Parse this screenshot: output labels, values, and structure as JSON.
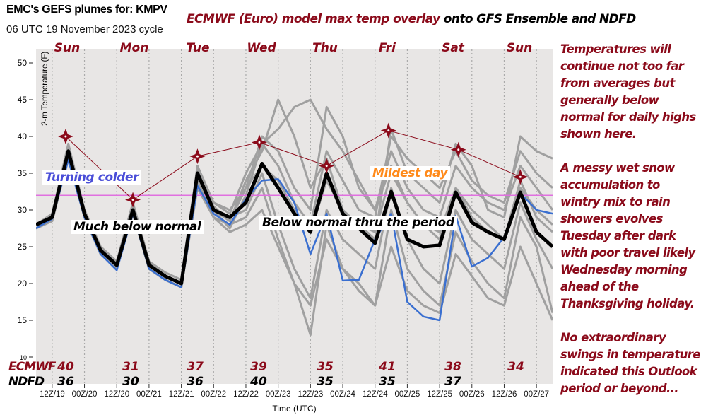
{
  "header": {
    "title": "EMC's GEFS plumes for: KMPV",
    "subtitle": "06 UTC 19 November 2023 cycle",
    "overlay_title_part1": "ECMWF (Euro) model max temp overlay",
    "overlay_title_part2": "onto GFS Ensemble and NDFD"
  },
  "side_notes": [
    "Temperatures will continue not too far from averages but generally below normal for daily  highs shown here.",
    "A messy wet snow accumulation to wintry mix to rain showers evolves Tuesday after dark with poor travel likely Wednesday morning ahead of the Thanksgiving holiday.",
    "No extraordinary swings in temperature indicated this Outlook period or beyond..."
  ],
  "annotations": {
    "turning_colder": "Turning colder",
    "much_below": "Much below normal",
    "below_period": "Below normal thru the period",
    "mildest": "Mildest day"
  },
  "colors": {
    "ecmwf": "#8b0a1a",
    "mean": "#000000",
    "control": "#3a6fd0",
    "members": "#a0a0a0",
    "freezing_line": "#e070e0",
    "plot_bg": "#e8e6e5",
    "turning_colder": "#4a4ed8",
    "mildest": "#ff8a1a"
  },
  "chart_data": {
    "type": "line",
    "xlabel": "Time (UTC)",
    "ylabel": "2-m Temperature (F)",
    "ylim": [
      10,
      52
    ],
    "xlim": [
      "11/19 06Z",
      "11/27 06Z"
    ],
    "yticks": [
      10,
      15,
      20,
      25,
      30,
      35,
      40,
      45,
      50
    ],
    "xticks": [
      "12Z/19",
      "00Z/20",
      "12Z/20",
      "00Z/21",
      "12Z/21",
      "00Z/22",
      "12Z/22",
      "00Z/23",
      "12Z/23",
      "00Z/24",
      "12Z/24",
      "00Z/25",
      "12Z/25",
      "00Z/26",
      "12Z/26",
      "00Z/27"
    ],
    "day_labels": [
      "Sun",
      "Mon",
      "Tue",
      "Wed",
      "Thu",
      "Fri",
      "Sat",
      "Sun"
    ],
    "grid": "vertical dotted",
    "reference_line": 32,
    "times": [
      "11/19 06Z",
      "11/19 12Z",
      "11/19 18Z",
      "11/20 00Z",
      "11/20 06Z",
      "11/20 12Z",
      "11/20 18Z",
      "11/21 00Z",
      "11/21 06Z",
      "11/21 12Z",
      "11/21 18Z",
      "11/22 00Z",
      "11/22 06Z",
      "11/22 12Z",
      "11/22 18Z",
      "11/23 00Z",
      "11/23 06Z",
      "11/23 12Z",
      "11/23 18Z",
      "11/24 00Z",
      "11/24 06Z",
      "11/24 12Z",
      "11/24 18Z",
      "11/25 00Z",
      "11/25 06Z",
      "11/25 12Z",
      "11/25 18Z",
      "11/26 00Z",
      "11/26 06Z",
      "11/26 12Z",
      "11/26 18Z",
      "11/27 00Z",
      "11/27 06Z"
    ],
    "members": [
      [
        28,
        29.5,
        39,
        30,
        25,
        23,
        31,
        23,
        21.5,
        20.5,
        36,
        31,
        30,
        33,
        40,
        38,
        33,
        30,
        44,
        40,
        33,
        30,
        38,
        33,
        30,
        29,
        36,
        33,
        31,
        30,
        36,
        33,
        30
      ],
      [
        27.5,
        29,
        37,
        29,
        24,
        22,
        30,
        22.5,
        21,
        20,
        34.5,
        30.5,
        28.5,
        34,
        38,
        45,
        40,
        33,
        37,
        30,
        28,
        26,
        41,
        35,
        33,
        31,
        39,
        36,
        30,
        29,
        40,
        38,
        37
      ],
      [
        28,
        29,
        38,
        29.5,
        24.5,
        22.5,
        30,
        22,
        20.5,
        19.5,
        35,
        30,
        29,
        30,
        35,
        28,
        22,
        18,
        30,
        26,
        24,
        22,
        33,
        26,
        22,
        20,
        30,
        26,
        24,
        22,
        31,
        26,
        22
      ],
      [
        27.5,
        28.5,
        37.5,
        29,
        24,
        22,
        29.5,
        22,
        20.5,
        19.5,
        35.5,
        30,
        27.5,
        32,
        39,
        41,
        44,
        45,
        41,
        38,
        34,
        30,
        36,
        31,
        28,
        26,
        33,
        29,
        27,
        26,
        34,
        29,
        27
      ],
      [
        28,
        29,
        38,
        30,
        25,
        23,
        30.5,
        23,
        21,
        20,
        34,
        29,
        28,
        29,
        33,
        26,
        20,
        13,
        28,
        22,
        20,
        17,
        30,
        22,
        19,
        17,
        27,
        23,
        20,
        18,
        29,
        25,
        16
      ],
      [
        28,
        29,
        38.5,
        30,
        24.5,
        22.5,
        30,
        22.5,
        21,
        20,
        35,
        31,
        29.5,
        35,
        39,
        36,
        31,
        28,
        38,
        34,
        30,
        29,
        40,
        37,
        35,
        33,
        38,
        34,
        32,
        31,
        38,
        35,
        33
      ],
      [
        27.5,
        28.5,
        37,
        29,
        24,
        22,
        29.5,
        22,
        20.5,
        19.5,
        33,
        29,
        27,
        28,
        30,
        25,
        20,
        17,
        26,
        22,
        19,
        17,
        25,
        19,
        17,
        16,
        24,
        21,
        18,
        17,
        25,
        20,
        15
      ],
      [
        28,
        29,
        38,
        29.5,
        24.5,
        22.5,
        30,
        22.5,
        21,
        20,
        35,
        30,
        28.5,
        33,
        36,
        34,
        30,
        27,
        34,
        30,
        28,
        27,
        35,
        31,
        28,
        27,
        33,
        30,
        28,
        26,
        33,
        30,
        28
      ]
    ],
    "series": [
      {
        "name": "GEFS mean",
        "values": [
          28,
          29,
          38,
          29.5,
          24.5,
          22.5,
          30,
          22.5,
          21,
          20,
          35,
          30,
          29,
          31,
          36.3,
          33,
          29.5,
          27,
          35,
          29.5,
          27.5,
          25.5,
          32.5,
          26,
          25,
          25.2,
          32.4,
          28.3,
          27,
          26,
          32.4,
          27,
          25
        ]
      },
      {
        "name": "control",
        "values": [
          27.5,
          28.8,
          36.8,
          29,
          24,
          21.8,
          29.5,
          22,
          20.5,
          19.5,
          33.3,
          29.5,
          28,
          31.5,
          34,
          34.2,
          31,
          24,
          29.5,
          20.4,
          20.5,
          26,
          29.5,
          17.5,
          15.5,
          15,
          29.2,
          22.3,
          23.5,
          26.3,
          32.3,
          30,
          29.5
        ]
      }
    ],
    "ecmwf_max": {
      "times": [
        "11/19 17Z",
        "11/20 18Z",
        "11/21 18Z",
        "11/22 17Z",
        "11/23 18Z",
        "11/24 17Z",
        "11/25 19Z",
        "11/26 18Z"
      ],
      "values": [
        40,
        31,
        37,
        39,
        35,
        41,
        38,
        34
      ]
    },
    "table": {
      "rows": [
        {
          "label": "ECMWF",
          "values": [
            "40",
            "31",
            "37",
            "39",
            "35",
            "41",
            "38",
            "34"
          ]
        },
        {
          "label": "NDFD",
          "values": [
            "36",
            "30",
            "36",
            "40",
            "35",
            "35",
            "37",
            ""
          ]
        }
      ]
    }
  }
}
